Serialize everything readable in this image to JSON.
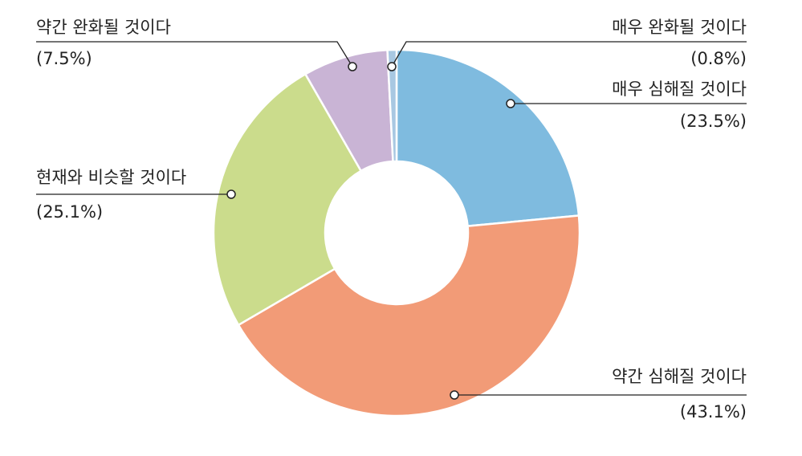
{
  "chart_data": {
    "type": "donut",
    "categories": [
      "매우 심해질 것이다",
      "약간 심해질 것이다",
      "현재와 비슷할 것이다",
      "약간 완화될 것이다",
      "매우 완화될 것이다"
    ],
    "values": [
      23.5,
      43.1,
      25.1,
      7.5,
      0.8
    ],
    "value_labels": [
      "(23.5%)",
      "(43.1%)",
      "(25.1%)",
      "(7.5%)",
      "(0.8%)"
    ],
    "colors": [
      "#7fbbdf",
      "#f29b77",
      "#cbdc8c",
      "#c9b4d5",
      "#a8c8e2"
    ]
  }
}
